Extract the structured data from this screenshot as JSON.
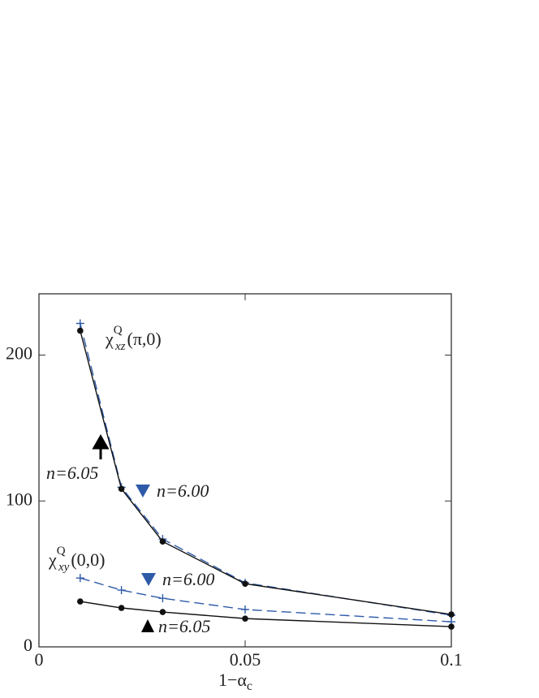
{
  "chart_data": {
    "type": "line",
    "x": [
      0.01,
      0.02,
      0.03,
      0.05,
      0.1
    ],
    "xlim": [
      0,
      0.1
    ],
    "xticks": [
      0,
      0.05,
      0.1
    ],
    "ylim": [
      0,
      242
    ],
    "yticks": [
      0,
      100,
      200
    ],
    "xlabel": {
      "main": "1−α",
      "sub": "c"
    },
    "series": [
      {
        "color": "#2e5aa8",
        "dash": true,
        "marker": "plus",
        "values": [
          221.7,
          109.4,
          73.9,
          43.9,
          21.7
        ]
      },
      {
        "color": "#111111",
        "dash": false,
        "marker": "dot",
        "values": [
          216.7,
          108.3,
          72.2,
          43.3,
          22.2
        ]
      },
      {
        "color": "#2e5aa8",
        "dash": true,
        "marker": "plus",
        "values": [
          47.2,
          38.9,
          33.3,
          25.6,
          17.2
        ]
      },
      {
        "color": "#111111",
        "dash": false,
        "marker": "dot",
        "values": [
          31.1,
          26.7,
          23.9,
          19.4,
          13.9
        ]
      }
    ],
    "annotations": [
      {
        "symbol": "χ",
        "sup": "Q",
        "sub": "xz",
        "arg": "(π,0)"
      },
      {
        "symbol": "χ",
        "sup": "Q",
        "sub": "xy",
        "arg": "(0,0)"
      },
      {
        "text": "n=6.05",
        "color": "#111111"
      },
      {
        "text": "n=6.00",
        "color": "#2e5aa8"
      },
      {
        "text": "n=6.00",
        "color": "#2e5aa8"
      },
      {
        "text": "n=6.05",
        "color": "#111111"
      }
    ]
  }
}
